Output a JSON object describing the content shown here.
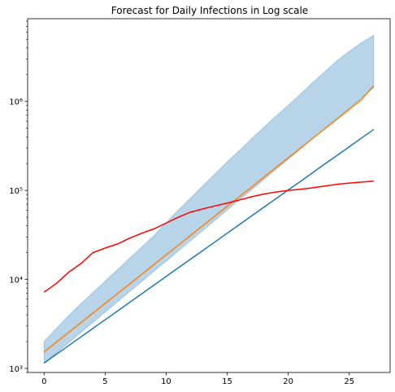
{
  "chart_data": {
    "type": "line",
    "title": "Forecast for Daily Infections in Log scale",
    "xlabel": "",
    "ylabel": "",
    "y_scale": "log",
    "xlim": [
      -1.35,
      28.35
    ],
    "ylim": [
      900,
      8500000
    ],
    "grid": false,
    "x_ticks": [
      0,
      5,
      10,
      15,
      20,
      25
    ],
    "y_ticks": [
      1000,
      10000,
      100000,
      1000000
    ],
    "y_tick_labels": [
      "10³",
      "10⁴",
      "10⁵",
      "10⁶"
    ],
    "x": [
      0,
      1,
      2,
      3,
      4,
      5,
      6,
      7,
      8,
      9,
      10,
      11,
      12,
      13,
      14,
      15,
      16,
      17,
      18,
      19,
      20,
      21,
      22,
      23,
      24,
      25,
      26,
      27
    ],
    "band": {
      "color": "#b8d4e9",
      "lower": [
        1150,
        1500,
        1950,
        2540,
        3300,
        4300,
        5600,
        7300,
        9500,
        12400,
        16100,
        21000,
        27300,
        35600,
        46300,
        60300,
        78500,
        102000,
        133000,
        173000,
        225000,
        293000,
        382000,
        497000,
        647000,
        842000,
        1100000,
        1430000
      ],
      "upper": [
        2000,
        2800,
        3900,
        5300,
        7100,
        9500,
        12800,
        17200,
        23000,
        31000,
        43000,
        60000,
        82000,
        112000,
        153000,
        208000,
        280000,
        380000,
        510000,
        680000,
        900000,
        1200000,
        1620000,
        2150000,
        2850000,
        3650000,
        4550000,
        5500000
      ]
    },
    "series": [
      {
        "color": "#1f77b4",
        "values": [
          1150,
          1440,
          1800,
          2250,
          2820,
          3520,
          4400,
          5510,
          6890,
          8620,
          10800,
          13500,
          16900,
          21100,
          26400,
          33000,
          41300,
          51700,
          64600,
          80800,
          101000,
          126000,
          158000,
          198000,
          247000,
          309000,
          387000,
          484000
        ]
      },
      {
        "color": "#ff7f0e",
        "values": [
          1530,
          1970,
          2530,
          3250,
          4180,
          5370,
          6900,
          8870,
          11400,
          14700,
          18900,
          24200,
          31200,
          40100,
          51500,
          66200,
          85100,
          109000,
          141000,
          181000,
          232000,
          298000,
          384000,
          493000,
          634000,
          815000,
          1050000,
          1500000
        ]
      },
      {
        "color": "#ff0000",
        "values": [
          7200,
          9000,
          12000,
          15000,
          20000,
          22500,
          25000,
          29000,
          33000,
          37000,
          43000,
          50000,
          57000,
          62000,
          67000,
          72000,
          78000,
          85000,
          91000,
          96000,
          100000,
          103000,
          107000,
          112000,
          117000,
          121000,
          124000,
          127000
        ]
      }
    ]
  }
}
